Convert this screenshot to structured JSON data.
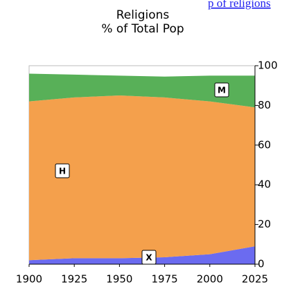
{
  "link_text": "p of religions",
  "chart_data": {
    "type": "stacked_area",
    "title": "Religions",
    "subtitle": "% of Total Pop",
    "x": [
      1900,
      1925,
      1950,
      1975,
      2000,
      2025
    ],
    "series": [
      {
        "name": "X",
        "color": "#6b6bf0",
        "values": [
          2,
          3,
          3,
          3.5,
          5,
          9
        ]
      },
      {
        "name": "H",
        "color": "#f4a04c",
        "values": [
          80,
          81,
          82,
          80.5,
          77,
          70
        ]
      },
      {
        "name": "M",
        "color": "#58b058",
        "values": [
          14,
          11.5,
          10,
          10.5,
          13,
          16
        ]
      }
    ],
    "xlim": [
      1900,
      2025
    ],
    "xticks": [
      1900,
      1925,
      1950,
      1975,
      2000,
      2025
    ],
    "ylim": [
      0,
      100
    ],
    "yticks": [
      0,
      20,
      40,
      60,
      80,
      100
    ]
  }
}
